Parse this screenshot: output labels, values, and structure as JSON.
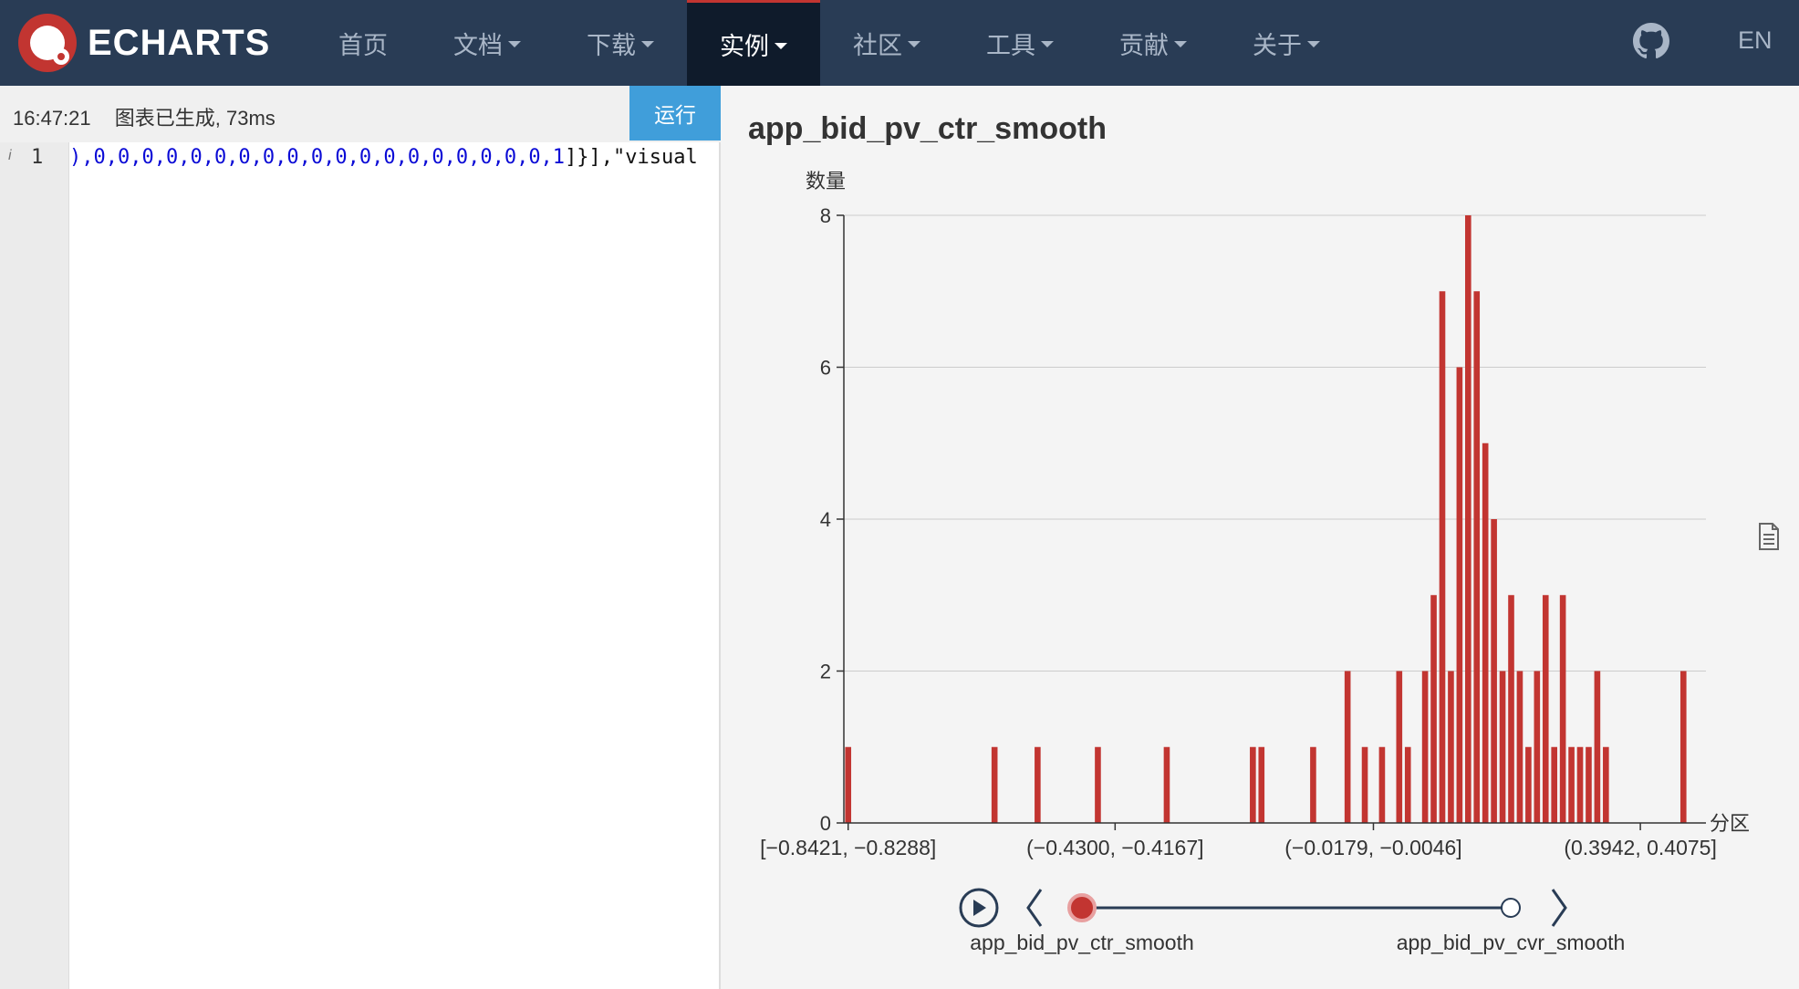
{
  "nav": {
    "logo_text": "ECHARTS",
    "items": [
      {
        "label": "首页",
        "dropdown": false,
        "active": false
      },
      {
        "label": "文档",
        "dropdown": true,
        "active": false
      },
      {
        "label": "下载",
        "dropdown": true,
        "active": false
      },
      {
        "label": "实例",
        "dropdown": true,
        "active": true
      },
      {
        "label": "社区",
        "dropdown": true,
        "active": false
      },
      {
        "label": "工具",
        "dropdown": true,
        "active": false
      },
      {
        "label": "贡献",
        "dropdown": true,
        "active": false
      },
      {
        "label": "关于",
        "dropdown": true,
        "active": false
      }
    ],
    "github_icon": "github-icon",
    "lang": "EN"
  },
  "editor": {
    "time": "16:47:21",
    "status": "图表已生成, 73ms",
    "run_label": "运行",
    "line_number": "1",
    "info_glyph": "i",
    "code_numbers": "),0,0,0,0,0,0,0,0,0,0,0,0,0,0,0,0,0,0,0,1",
    "code_tail": "]}],\"visual"
  },
  "chart": {
    "title": "app_bid_pv_ctr_smooth",
    "doc_icon": "data-view-icon",
    "timeline": {
      "play_icon": "play-icon",
      "prev_icon": "chevron-left-icon",
      "next_icon": "chevron-right-icon",
      "labels": [
        "app_bid_pv_ctr_smooth",
        "app_bid_pv_cvr_smooth"
      ],
      "current_index": 0
    },
    "colors": {
      "bar": "#c23531",
      "axis": "#333333",
      "grid": "#cccccc"
    }
  },
  "chart_data": {
    "type": "bar",
    "ylabel": "数量",
    "xlabel": "分区",
    "ylim": [
      0,
      8
    ],
    "yticks": [
      0,
      2,
      4,
      6,
      8
    ],
    "category_count": 98,
    "xtick_labels": [
      {
        "index": 0,
        "label": "[−0.8421, −0.8288]"
      },
      {
        "index": 31,
        "label": "(−0.4300, −0.4167]"
      },
      {
        "index": 61,
        "label": "(−0.0179, −0.0046]"
      },
      {
        "index": 92,
        "label": "(0.3942, 0.4075]"
      }
    ],
    "values": [
      1,
      0,
      0,
      0,
      0,
      0,
      0,
      0,
      0,
      0,
      0,
      0,
      0,
      0,
      0,
      0,
      0,
      1,
      0,
      0,
      0,
      0,
      1,
      0,
      0,
      0,
      0,
      0,
      0,
      1,
      0,
      0,
      0,
      0,
      0,
      0,
      0,
      1,
      0,
      0,
      0,
      0,
      0,
      0,
      0,
      0,
      0,
      1,
      1,
      0,
      0,
      0,
      0,
      0,
      1,
      0,
      0,
      0,
      2,
      0,
      1,
      0,
      1,
      0,
      2,
      1,
      0,
      2,
      3,
      7,
      2,
      6,
      8,
      7,
      5,
      4,
      2,
      3,
      2,
      1,
      2,
      3,
      1,
      3,
      1,
      1,
      1,
      2,
      1,
      0,
      0,
      0,
      0,
      0,
      0,
      0,
      0,
      2
    ]
  }
}
